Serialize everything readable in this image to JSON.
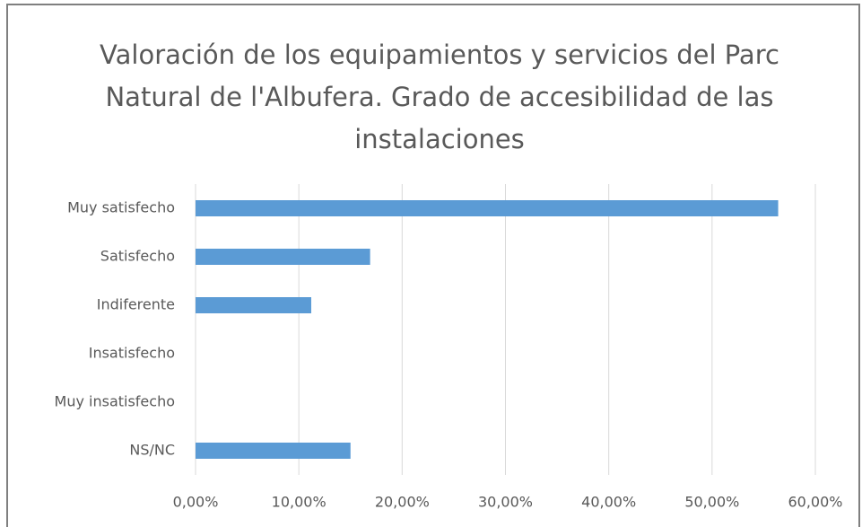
{
  "chart_data": {
    "type": "barh",
    "title": "Valoración de los equipamientos y servicios del Parc Natural de l'Albufera. Grado de accesibilidad de las instalaciones",
    "categories": [
      "Muy satisfecho",
      "Satisfecho",
      "Indiferente",
      "Insatisfecho",
      "Muy insatisfecho",
      "NS/NC"
    ],
    "values": [
      56.4,
      16.9,
      11.2,
      0,
      0,
      15.0
    ],
    "color": "#5b9bd5",
    "xlim": [
      0,
      60
    ],
    "xticks": [
      {
        "value": 0,
        "label": "0,00%"
      },
      {
        "value": 10,
        "label": "10,00%"
      },
      {
        "value": 20,
        "label": "20,00%"
      },
      {
        "value": 30,
        "label": "30,00%"
      },
      {
        "value": 40,
        "label": "40,00%"
      },
      {
        "value": 50,
        "label": "50,00%"
      },
      {
        "value": 60,
        "label": "60,00%"
      }
    ],
    "grid": true
  }
}
